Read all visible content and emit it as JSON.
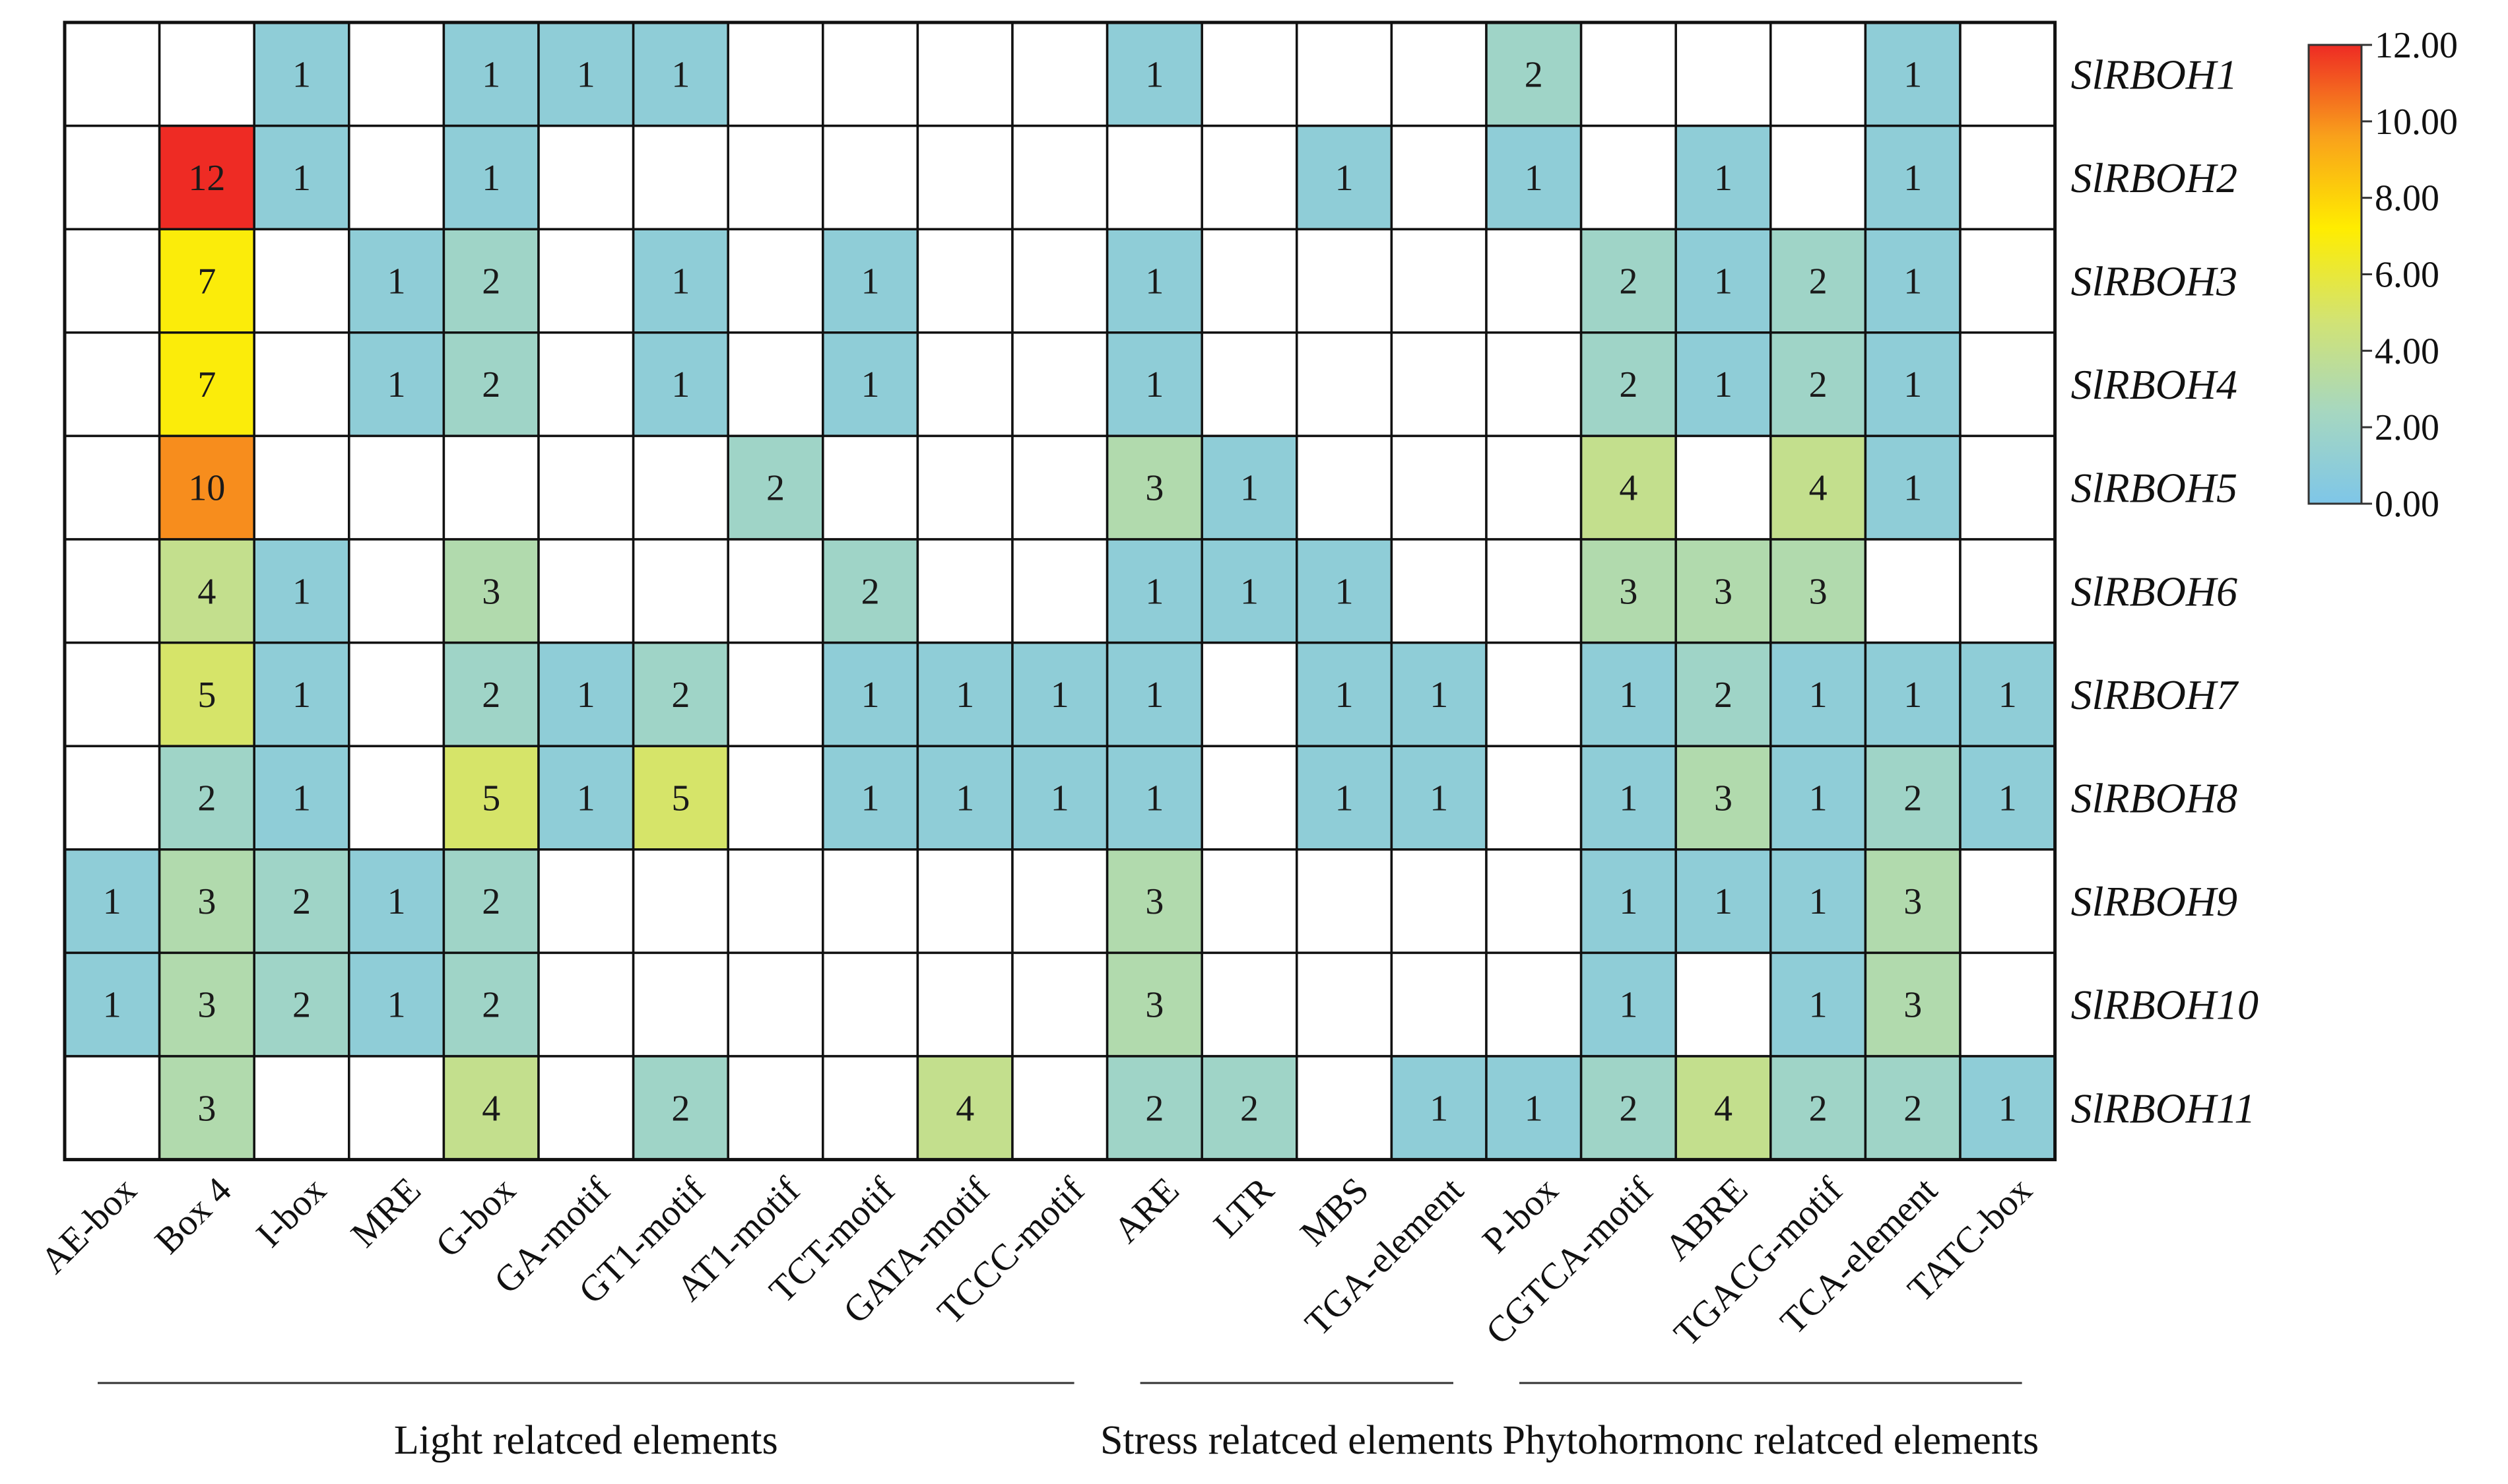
{
  "chart_data": {
    "type": "heatmap",
    "columns": [
      "AE-box",
      "Box 4",
      "I-box",
      "MRE",
      "G-box",
      "GA-motif",
      "GT1-motif",
      "AT1-motif",
      "TCT-motif",
      "GATA-motif",
      "TCCC-motif",
      "ARE",
      "LTR",
      "MBS",
      "TGA-element",
      "P-box",
      "CGTCA-motif",
      "ABRE",
      "TGACG-motif",
      "TCA-element",
      "TATC-box"
    ],
    "rows": [
      "SlRBOH1",
      "SlRBOH2",
      "SlRBOH3",
      "SlRBOH4",
      "SlRBOH5",
      "SlRBOH6",
      "SlRBOH7",
      "SlRBOH8",
      "SlRBOH9",
      "SlRBOH10",
      "SlRBOH11"
    ],
    "values": [
      [
        null,
        null,
        1,
        null,
        1,
        1,
        1,
        null,
        null,
        null,
        null,
        1,
        null,
        null,
        null,
        2,
        null,
        null,
        null,
        1,
        null
      ],
      [
        null,
        12,
        1,
        null,
        1,
        null,
        null,
        null,
        null,
        null,
        null,
        null,
        null,
        1,
        null,
        1,
        null,
        1,
        null,
        1,
        null
      ],
      [
        null,
        7,
        null,
        1,
        2,
        null,
        1,
        null,
        1,
        null,
        null,
        1,
        null,
        null,
        null,
        null,
        2,
        1,
        2,
        1,
        null
      ],
      [
        null,
        7,
        null,
        1,
        2,
        null,
        1,
        null,
        1,
        null,
        null,
        1,
        null,
        null,
        null,
        null,
        2,
        1,
        2,
        1,
        null
      ],
      [
        null,
        10,
        null,
        null,
        null,
        null,
        null,
        2,
        null,
        null,
        null,
        3,
        1,
        null,
        null,
        null,
        4,
        null,
        4,
        1,
        null
      ],
      [
        null,
        4,
        1,
        null,
        3,
        null,
        null,
        null,
        2,
        null,
        null,
        1,
        1,
        1,
        null,
        null,
        3,
        3,
        3,
        null,
        null
      ],
      [
        null,
        5,
        1,
        null,
        2,
        1,
        2,
        null,
        1,
        1,
        1,
        1,
        null,
        1,
        1,
        null,
        1,
        2,
        1,
        1,
        1
      ],
      [
        null,
        2,
        1,
        null,
        5,
        1,
        5,
        null,
        1,
        1,
        1,
        1,
        null,
        1,
        1,
        null,
        1,
        3,
        1,
        2,
        1
      ],
      [
        1,
        3,
        2,
        1,
        2,
        null,
        null,
        null,
        null,
        null,
        null,
        3,
        null,
        null,
        null,
        null,
        1,
        1,
        1,
        3,
        null
      ],
      [
        1,
        3,
        2,
        1,
        2,
        null,
        null,
        null,
        null,
        null,
        null,
        3,
        null,
        null,
        null,
        null,
        1,
        null,
        1,
        3,
        null
      ],
      [
        null,
        3,
        null,
        null,
        4,
        null,
        2,
        null,
        null,
        4,
        null,
        2,
        2,
        null,
        1,
        1,
        2,
        4,
        2,
        2,
        1
      ]
    ],
    "groups": [
      {
        "label": "Light relatced elements",
        "from": 0,
        "to": 10
      },
      {
        "label": "Stress relatced elements",
        "from": 11,
        "to": 14
      },
      {
        "label": "Phytohormonc relatced elements",
        "from": 15,
        "to": 20
      }
    ],
    "colorbar": {
      "min": 0,
      "max": 12,
      "ticks": [
        "12.00",
        "10.00",
        "8.00",
        "6.00",
        "4.00",
        "2.00",
        "0.00"
      ],
      "colors": [
        "#7ec6e8",
        "#a6d7c0",
        "#d2e373",
        "#ffed00",
        "#f9a11b",
        "#ee2b24"
      ]
    }
  }
}
